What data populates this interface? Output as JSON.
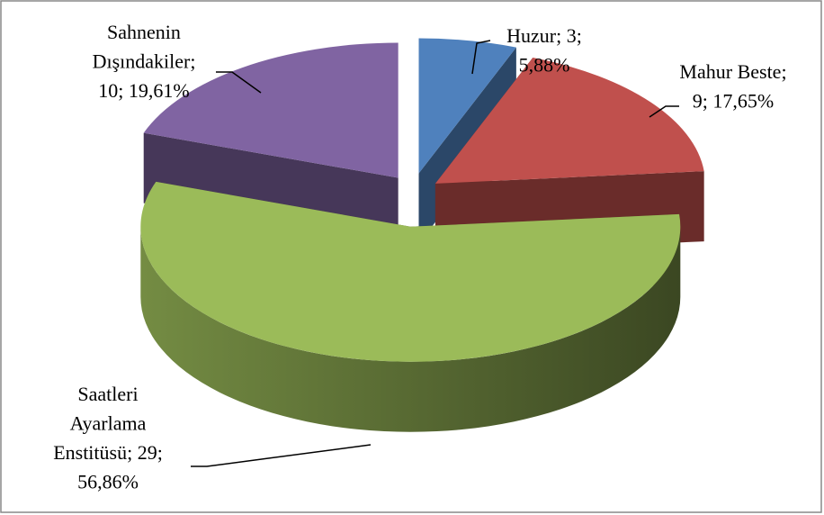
{
  "chart_data": {
    "type": "pie3d",
    "values": [
      3,
      9,
      29,
      10
    ],
    "value_labels": [
      [
        "Huzur; 3;",
        "5,88%"
      ],
      [
        "Mahur Beste;",
        "9; 17,65%"
      ],
      [
        "Saatleri",
        "Ayarlama",
        "Enstitüsü; 29;",
        "56,86%"
      ],
      [
        "Sahnenin",
        "Dışındakiler;",
        "10; 19,61%"
      ]
    ],
    "colors": [
      "#4f81bd",
      "#c0504d",
      "#9bbb59",
      "#8064a2"
    ]
  }
}
